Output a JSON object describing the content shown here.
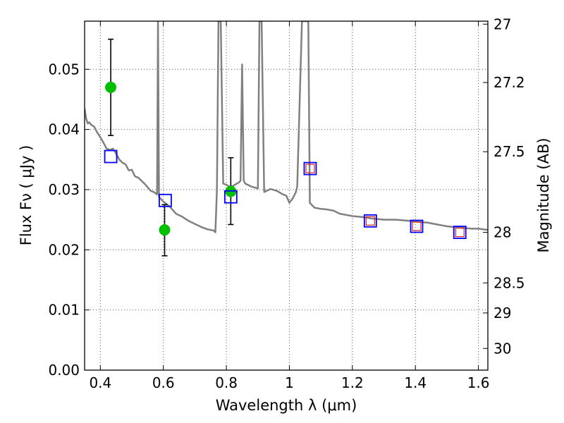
{
  "chart_data": {
    "type": "scatter",
    "xlabel": "Wavelength  λ (μm)",
    "ylabel": "Flux  Fν  ( μJy )",
    "ylabel_right": "Magnitude (AB)",
    "xlim": [
      0.35,
      1.63
    ],
    "ylim": [
      0.0,
      0.058
    ],
    "grid": true,
    "x_ticks": [
      0.4,
      0.6,
      0.8,
      1.0,
      1.2,
      1.4,
      1.6
    ],
    "x_tick_labels": [
      "0.4",
      "0.6",
      "0.8",
      "1",
      "1.2",
      "1.4",
      "1.6"
    ],
    "y_ticks": [
      0.0,
      0.01,
      0.02,
      0.03,
      0.04,
      0.05
    ],
    "y_tick_labels": [
      "0.00",
      "0.01",
      "0.02",
      "0.03",
      "0.04",
      "0.05"
    ],
    "right_ticks": [
      {
        "label": "27",
        "flux": 0.0575
      },
      {
        "label": "27.2",
        "flux": 0.0478
      },
      {
        "label": "27.5",
        "flux": 0.0363
      },
      {
        "label": "28",
        "flux": 0.0229
      },
      {
        "label": "28.5",
        "flux": 0.0145
      },
      {
        "label": "29",
        "flux": 0.0095
      },
      {
        "label": "30",
        "flux": 0.0036
      }
    ],
    "colors": {
      "sed": "#808080",
      "observed": "#00c000",
      "model_blue": "#0000ff",
      "model_red": "#dd2222",
      "errorbar": "#000000",
      "grid": "#555555"
    },
    "series": [
      {
        "name": "template SED",
        "kind": "line",
        "points": [
          [
            0.35,
            0.0435
          ],
          [
            0.355,
            0.0418
          ],
          [
            0.36,
            0.041
          ],
          [
            0.365,
            0.0412
          ],
          [
            0.37,
            0.0408
          ],
          [
            0.38,
            0.0405
          ],
          [
            0.39,
            0.0395
          ],
          [
            0.4,
            0.0387
          ],
          [
            0.41,
            0.0378
          ],
          [
            0.42,
            0.0368
          ],
          [
            0.43,
            0.0366
          ],
          [
            0.44,
            0.0368
          ],
          [
            0.45,
            0.036
          ],
          [
            0.46,
            0.035
          ],
          [
            0.47,
            0.0345
          ],
          [
            0.48,
            0.0342
          ],
          [
            0.49,
            0.0332
          ],
          [
            0.5,
            0.0333
          ],
          [
            0.51,
            0.0322
          ],
          [
            0.52,
            0.032
          ],
          [
            0.53,
            0.0315
          ],
          [
            0.54,
            0.031
          ],
          [
            0.55,
            0.0304
          ],
          [
            0.56,
            0.0298
          ],
          [
            0.57,
            0.0296
          ],
          [
            0.58,
            0.0292
          ],
          [
            0.583,
            0.058
          ],
          [
            0.586,
            0.0288
          ],
          [
            0.6,
            0.028
          ],
          [
            0.62,
            0.0272
          ],
          [
            0.64,
            0.026
          ],
          [
            0.66,
            0.0255
          ],
          [
            0.68,
            0.0248
          ],
          [
            0.7,
            0.0243
          ],
          [
            0.72,
            0.0238
          ],
          [
            0.74,
            0.0234
          ],
          [
            0.76,
            0.0232
          ],
          [
            0.765,
            0.0229
          ],
          [
            0.77,
            0.03
          ],
          [
            0.775,
            0.058
          ],
          [
            0.782,
            0.058
          ],
          [
            0.79,
            0.031
          ],
          [
            0.8,
            0.0308
          ],
          [
            0.81,
            0.0305
          ],
          [
            0.82,
            0.0306
          ],
          [
            0.83,
            0.0309
          ],
          [
            0.84,
            0.0312
          ],
          [
            0.845,
            0.0315
          ],
          [
            0.85,
            0.0508
          ],
          [
            0.855,
            0.0315
          ],
          [
            0.86,
            0.031
          ],
          [
            0.88,
            0.0305
          ],
          [
            0.9,
            0.0302
          ],
          [
            0.905,
            0.058
          ],
          [
            0.912,
            0.058
          ],
          [
            0.92,
            0.0296
          ],
          [
            0.94,
            0.0301
          ],
          [
            0.96,
            0.0298
          ],
          [
            0.98,
            0.0292
          ],
          [
            0.99,
            0.029
          ],
          [
            1.0,
            0.0278
          ],
          [
            1.01,
            0.0285
          ],
          [
            1.02,
            0.0295
          ],
          [
            1.025,
            0.0305
          ],
          [
            1.04,
            0.058
          ],
          [
            1.06,
            0.058
          ],
          [
            1.065,
            0.0278
          ],
          [
            1.08,
            0.027
          ],
          [
            1.1,
            0.0268
          ],
          [
            1.12,
            0.0267
          ],
          [
            1.14,
            0.0265
          ],
          [
            1.16,
            0.026
          ],
          [
            1.18,
            0.0258
          ],
          [
            1.2,
            0.0256
          ],
          [
            1.22,
            0.0255
          ],
          [
            1.24,
            0.0254
          ],
          [
            1.26,
            0.0252
          ],
          [
            1.28,
            0.0251
          ],
          [
            1.3,
            0.025
          ],
          [
            1.32,
            0.025
          ],
          [
            1.34,
            0.025
          ],
          [
            1.36,
            0.0249
          ],
          [
            1.38,
            0.0248
          ],
          [
            1.4,
            0.0247
          ],
          [
            1.42,
            0.0246
          ],
          [
            1.44,
            0.0245
          ],
          [
            1.46,
            0.0243
          ],
          [
            1.48,
            0.0241
          ],
          [
            1.5,
            0.0239
          ],
          [
            1.52,
            0.0238
          ],
          [
            1.54,
            0.0237
          ],
          [
            1.56,
            0.0236
          ],
          [
            1.58,
            0.0235
          ],
          [
            1.6,
            0.0235
          ],
          [
            1.63,
            0.0233
          ]
        ]
      },
      {
        "name": "observed photometry",
        "kind": "errorbar",
        "points": [
          {
            "x": 0.433,
            "y": 0.047,
            "ylo": 0.039,
            "yhi": 0.055
          },
          {
            "x": 0.604,
            "y": 0.0233,
            "ylo": 0.019,
            "yhi": 0.0275
          },
          {
            "x": 0.814,
            "y": 0.0297,
            "ylo": 0.0242,
            "yhi": 0.0353
          }
        ]
      },
      {
        "name": "model photometry",
        "kind": "square",
        "points": [
          {
            "x": 0.433,
            "y": 0.0355,
            "inner": false
          },
          {
            "x": 0.606,
            "y": 0.0282,
            "inner": false
          },
          {
            "x": 0.814,
            "y": 0.0288,
            "inner": false
          },
          {
            "x": 1.066,
            "y": 0.0335,
            "inner": true
          },
          {
            "x": 1.257,
            "y": 0.0248,
            "inner": true
          },
          {
            "x": 1.404,
            "y": 0.0239,
            "inner": true
          },
          {
            "x": 1.541,
            "y": 0.0229,
            "inner": true
          }
        ]
      }
    ]
  }
}
